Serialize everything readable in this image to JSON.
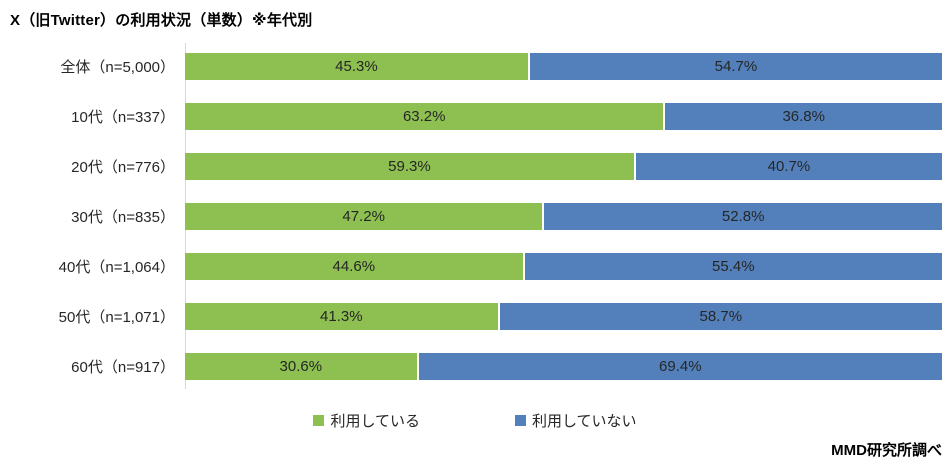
{
  "title": "X（旧Twitter）の利用状況（単数）※年代別",
  "source": "MMD研究所調べ",
  "colors": {
    "using": "#8DC050",
    "not_using": "#5380BB",
    "axis_line": "#D9D9D9",
    "value_text": "#262626"
  },
  "legend": [
    {
      "label": "利用している",
      "color": "#8DC050"
    },
    {
      "label": "利用していない",
      "color": "#5380BB"
    }
  ],
  "chart_data": {
    "type": "bar",
    "orientation": "horizontal",
    "stacked": true,
    "title": "X（旧Twitter）の利用状況（単数）※年代別",
    "categories": [
      "全体（n=5,000）",
      "10代（n=337）",
      "20代（n=776）",
      "30代（n=835）",
      "40代（n=1,064）",
      "50代（n=1,071）",
      "60代（n=917）"
    ],
    "series": [
      {
        "name": "利用している",
        "color": "#8DC050",
        "values": [
          45.3,
          63.2,
          59.3,
          47.2,
          44.6,
          41.3,
          30.6
        ]
      },
      {
        "name": "利用していない",
        "color": "#5380BB",
        "values": [
          54.7,
          36.8,
          40.7,
          52.8,
          55.4,
          58.7,
          69.4
        ]
      }
    ],
    "value_suffix": "%",
    "xlim": [
      0,
      100
    ],
    "grid": false,
    "legend_position": "bottom"
  }
}
